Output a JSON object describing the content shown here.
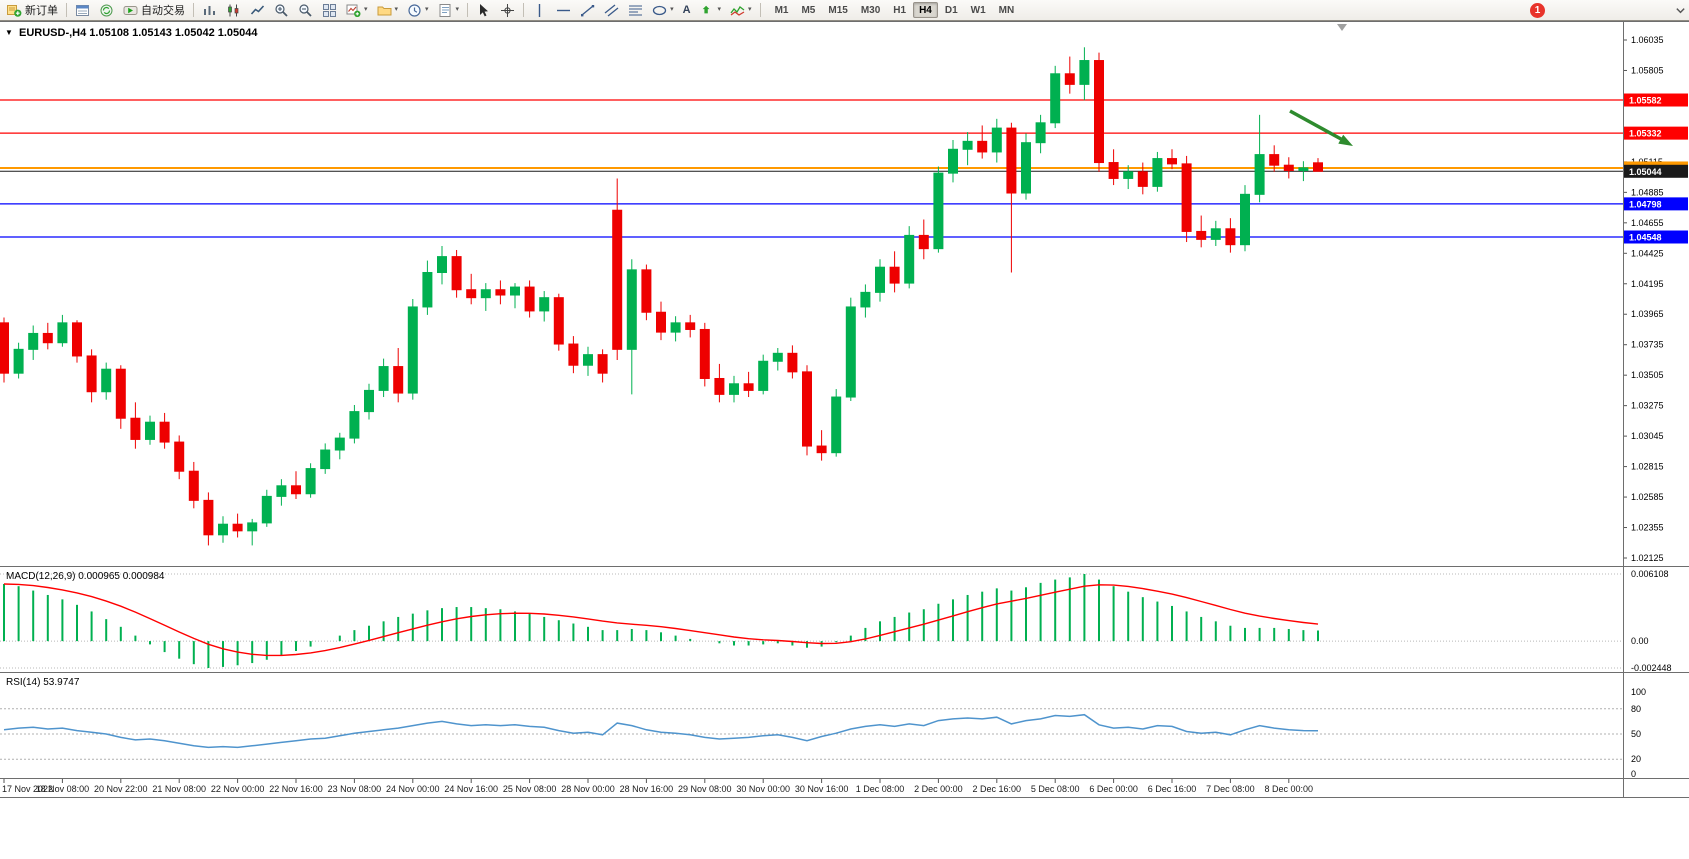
{
  "toolbar": {
    "new_order_label": "新订单",
    "autotrading_label": "自动交易",
    "timeframes": [
      "M1",
      "M5",
      "M15",
      "M30",
      "H1",
      "H4",
      "D1",
      "W1",
      "MN"
    ],
    "active_timeframe": "H4",
    "notification_count": "1",
    "text_tool_label": "A"
  },
  "chart": {
    "title": "EURUSD-,H4 1.05108 1.05143 1.05042 1.05044",
    "symbol": "EURUSD-",
    "period": "H4",
    "ohlc": {
      "open": "1.05108",
      "high": "1.05143",
      "low": "1.05042",
      "close": "1.05044"
    },
    "colors": {
      "up": "#00B050",
      "down": "#EE0000",
      "background": "#FFFFFF"
    },
    "price_axis": [
      "1.06035",
      "1.05805",
      "1.05575",
      "1.05345",
      "1.05115",
      "1.04885",
      "1.04655",
      "1.04425",
      "1.04195",
      "1.03965",
      "1.03735",
      "1.03505",
      "1.03275",
      "1.03045",
      "1.02815",
      "1.02585",
      "1.02355",
      "1.02125"
    ],
    "levels": [
      {
        "price": 1.05582,
        "label": "1.05582",
        "color": "#FF0000",
        "width": 1.3,
        "name": "resistance-line-1"
      },
      {
        "price": 1.05332,
        "label": "1.05332",
        "color": "#FF0000",
        "width": 1.3,
        "name": "resistance-line-2"
      },
      {
        "price": 1.05069,
        "label": "1.05069",
        "color": "#FF9900",
        "width": 2,
        "name": "pivot-line"
      },
      {
        "price": 1.05044,
        "label": "1.05044",
        "color": "#1A1A1A",
        "width": 1,
        "name": "current-bid-line"
      },
      {
        "price": 1.04798,
        "label": "1.04798",
        "color": "#0000FF",
        "width": 1.3,
        "name": "support-line-1"
      },
      {
        "price": 1.04548,
        "label": "1.04548",
        "color": "#0000FF",
        "width": 1.3,
        "name": "support-line-2"
      }
    ],
    "annotation_arrow": {
      "color": "#2E8B2E",
      "direction": "down-right"
    }
  },
  "macd": {
    "label": "MACD(12,26,9) 0.000965 0.000984",
    "axis": [
      "0.006108",
      "0.00",
      "-0.002448"
    ],
    "histogram_color": "#00B050",
    "signal_color": "#FF0000",
    "signal_period": 9
  },
  "rsi": {
    "label": "RSI(14) 53.9747",
    "axis": [
      "100",
      "80",
      "50",
      "20",
      "0"
    ],
    "levels": [
      80,
      50,
      20
    ],
    "line_color": "#4F94CD"
  },
  "chart_data": {
    "type": "candlestick",
    "symbol": "EURUSD-",
    "timeframe": "H4",
    "price_range": [
      1.02125,
      1.06035
    ],
    "x_labels": [
      "17 Nov 2022",
      "18 Nov 08:00",
      "20 Nov 22:00",
      "21 Nov 08:00",
      "22 Nov 00:00",
      "22 Nov 16:00",
      "23 Nov 08:00",
      "24 Nov 00:00",
      "24 Nov 16:00",
      "25 Nov 08:00",
      "28 Nov 00:00",
      "28 Nov 16:00",
      "29 Nov 08:00",
      "30 Nov 00:00",
      "30 Nov 16:00",
      "1 Dec 08:00",
      "2 Dec 00:00",
      "2 Dec 16:00",
      "5 Dec 08:00",
      "6 Dec 00:00",
      "6 Dec 16:00",
      "7 Dec 08:00",
      "8 Dec 00:00"
    ],
    "bars_per_label": 4,
    "candles_ohlc": [
      [
        1.039,
        1.0394,
        1.0345,
        1.0352
      ],
      [
        1.0352,
        1.0375,
        1.0348,
        1.037
      ],
      [
        1.037,
        1.0388,
        1.0362,
        1.0382
      ],
      [
        1.0382,
        1.039,
        1.037,
        1.0375
      ],
      [
        1.0375,
        1.0396,
        1.0372,
        1.039
      ],
      [
        1.039,
        1.0392,
        1.036,
        1.0365
      ],
      [
        1.0365,
        1.037,
        1.033,
        1.0338
      ],
      [
        1.0338,
        1.036,
        1.0332,
        1.0355
      ],
      [
        1.0355,
        1.0358,
        1.031,
        1.0318
      ],
      [
        1.0318,
        1.033,
        1.0295,
        1.0302
      ],
      [
        1.0302,
        1.032,
        1.0298,
        1.0315
      ],
      [
        1.0315,
        1.0322,
        1.0295,
        1.03
      ],
      [
        1.03,
        1.0305,
        1.0272,
        1.0278
      ],
      [
        1.0278,
        1.0285,
        1.025,
        1.0256
      ],
      [
        1.0256,
        1.0262,
        1.0222,
        1.023
      ],
      [
        1.023,
        1.0244,
        1.0224,
        1.0238
      ],
      [
        1.0238,
        1.0246,
        1.0228,
        1.0233
      ],
      [
        1.0233,
        1.0242,
        1.0222,
        1.0239
      ],
      [
        1.0239,
        1.0264,
        1.0236,
        1.0259
      ],
      [
        1.0259,
        1.0272,
        1.0252,
        1.0267
      ],
      [
        1.0267,
        1.0278,
        1.0257,
        1.0261
      ],
      [
        1.0261,
        1.0284,
        1.0258,
        1.028
      ],
      [
        1.028,
        1.0299,
        1.0276,
        1.0294
      ],
      [
        1.0294,
        1.0307,
        1.0287,
        1.0303
      ],
      [
        1.0303,
        1.0328,
        1.0299,
        1.0323
      ],
      [
        1.0323,
        1.0344,
        1.0317,
        1.0339
      ],
      [
        1.0339,
        1.0363,
        1.0334,
        1.0357
      ],
      [
        1.0357,
        1.0371,
        1.033,
        1.0337
      ],
      [
        1.0337,
        1.0408,
        1.0332,
        1.0402
      ],
      [
        1.0402,
        1.0437,
        1.0396,
        1.0428
      ],
      [
        1.0428,
        1.0448,
        1.0419,
        1.044
      ],
      [
        1.044,
        1.0445,
        1.0409,
        1.0415
      ],
      [
        1.0415,
        1.0427,
        1.0404,
        1.0409
      ],
      [
        1.0409,
        1.042,
        1.0399,
        1.0415
      ],
      [
        1.0415,
        1.0422,
        1.0404,
        1.0411
      ],
      [
        1.0411,
        1.042,
        1.0401,
        1.0417
      ],
      [
        1.0417,
        1.0422,
        1.0394,
        1.0399
      ],
      [
        1.0399,
        1.0414,
        1.0391,
        1.0409
      ],
      [
        1.0409,
        1.0412,
        1.0369,
        1.0374
      ],
      [
        1.0374,
        1.038,
        1.0352,
        1.0358
      ],
      [
        1.0358,
        1.0372,
        1.035,
        1.0366
      ],
      [
        1.0366,
        1.037,
        1.0345,
        1.0352
      ],
      [
        1.0475,
        1.0499,
        1.0362,
        1.037
      ],
      [
        1.037,
        1.0438,
        1.0336,
        1.043
      ],
      [
        1.043,
        1.0434,
        1.0392,
        1.0398
      ],
      [
        1.0398,
        1.0406,
        1.0377,
        1.0383
      ],
      [
        1.0383,
        1.0395,
        1.0376,
        1.039
      ],
      [
        1.039,
        1.0396,
        1.0379,
        1.0385
      ],
      [
        1.0385,
        1.039,
        1.0342,
        1.0348
      ],
      [
        1.0348,
        1.0359,
        1.033,
        1.0336
      ],
      [
        1.0336,
        1.035,
        1.033,
        1.0344
      ],
      [
        1.0344,
        1.0353,
        1.0334,
        1.0339
      ],
      [
        1.0339,
        1.0366,
        1.0336,
        1.0361
      ],
      [
        1.0361,
        1.0371,
        1.0354,
        1.0367
      ],
      [
        1.0367,
        1.0373,
        1.0348,
        1.0353
      ],
      [
        1.0353,
        1.0358,
        1.029,
        1.0297
      ],
      [
        1.0297,
        1.0309,
        1.0286,
        1.0292
      ],
      [
        1.0292,
        1.034,
        1.0289,
        1.0334
      ],
      [
        1.0334,
        1.0409,
        1.0331,
        1.0402
      ],
      [
        1.0402,
        1.0419,
        1.0394,
        1.0413
      ],
      [
        1.0413,
        1.0438,
        1.0406,
        1.0432
      ],
      [
        1.0432,
        1.0444,
        1.0413,
        1.042
      ],
      [
        1.042,
        1.0463,
        1.0416,
        1.0456
      ],
      [
        1.0456,
        1.0468,
        1.0438,
        1.0446
      ],
      [
        1.0446,
        1.0508,
        1.0443,
        1.0503
      ],
      [
        1.0503,
        1.0528,
        1.0496,
        1.0521
      ],
      [
        1.0521,
        1.0534,
        1.0509,
        1.0527
      ],
      [
        1.0527,
        1.0539,
        1.0514,
        1.0519
      ],
      [
        1.0519,
        1.0544,
        1.0511,
        1.0537
      ],
      [
        1.0537,
        1.0541,
        1.0428,
        1.0488
      ],
      [
        1.0488,
        1.0533,
        1.0483,
        1.0526
      ],
      [
        1.0526,
        1.0547,
        1.0518,
        1.0541
      ],
      [
        1.0541,
        1.0584,
        1.0537,
        1.0578
      ],
      [
        1.0578,
        1.0591,
        1.0563,
        1.057
      ],
      [
        1.057,
        1.0598,
        1.0558,
        1.0588
      ],
      [
        1.0588,
        1.0594,
        1.0504,
        1.0511
      ],
      [
        1.0511,
        1.0521,
        1.0494,
        1.0499
      ],
      [
        1.0499,
        1.0509,
        1.0491,
        1.0504
      ],
      [
        1.0504,
        1.0511,
        1.0487,
        1.0493
      ],
      [
        1.0493,
        1.0519,
        1.0489,
        1.0514
      ],
      [
        1.0514,
        1.0521,
        1.0506,
        1.051
      ],
      [
        1.051,
        1.0516,
        1.0451,
        1.0459
      ],
      [
        1.0459,
        1.0471,
        1.0447,
        1.0453
      ],
      [
        1.0453,
        1.0467,
        1.0448,
        1.0461
      ],
      [
        1.0461,
        1.0469,
        1.0443,
        1.0449
      ],
      [
        1.0449,
        1.0494,
        1.0444,
        1.0487
      ],
      [
        1.0487,
        1.0547,
        1.0481,
        1.0517
      ],
      [
        1.0517,
        1.0524,
        1.0504,
        1.0509
      ],
      [
        1.0509,
        1.0515,
        1.0499,
        1.0505
      ],
      [
        1.0505,
        1.0512,
        1.0497,
        1.0507
      ],
      [
        1.05108,
        1.05143,
        1.05042,
        1.05044
      ]
    ],
    "indicators": {
      "macd": {
        "params": "12,26,9",
        "current": 0.000965,
        "current_signal": 0.000984,
        "histogram": [
          0.0052,
          0.005,
          0.0046,
          0.0042,
          0.0038,
          0.0033,
          0.0027,
          0.002,
          0.0013,
          0.0005,
          -0.0003,
          -0.001,
          -0.0016,
          -0.0021,
          -0.00245,
          -0.00235,
          -0.0022,
          -0.002,
          -0.0017,
          -0.0013,
          -0.0009,
          -0.0005,
          0.0,
          0.0005,
          0.001,
          0.0014,
          0.0018,
          0.0022,
          0.0025,
          0.0028,
          0.003,
          0.0031,
          0.0031,
          0.003,
          0.0029,
          0.0027,
          0.0025,
          0.0022,
          0.0019,
          0.0016,
          0.0013,
          0.001,
          0.001,
          0.0011,
          0.001,
          0.0008,
          0.0005,
          0.0002,
          0.0,
          -0.0002,
          -0.0004,
          -0.0004,
          -0.0003,
          -0.0002,
          -0.0004,
          -0.0006,
          -0.0005,
          -0.0001,
          0.0005,
          0.0012,
          0.0018,
          0.0022,
          0.0026,
          0.0029,
          0.0034,
          0.0038,
          0.0042,
          0.0045,
          0.0048,
          0.0046,
          0.0049,
          0.0053,
          0.0056,
          0.0058,
          0.006108,
          0.0056,
          0.005,
          0.0045,
          0.004,
          0.0036,
          0.0032,
          0.0027,
          0.0022,
          0.0018,
          0.0014,
          0.0012,
          0.0012,
          0.0012,
          0.0011,
          0.001,
          0.000965
        ]
      },
      "rsi": {
        "params": "14",
        "current": 53.9747,
        "values": [
          55,
          57,
          58,
          56,
          57,
          54,
          52,
          50,
          46,
          43,
          44,
          42,
          39,
          36,
          34,
          35,
          34,
          36,
          38,
          40,
          42,
          44,
          45,
          48,
          51,
          53,
          55,
          57,
          60,
          63,
          65,
          62,
          60,
          61,
          60,
          61,
          59,
          58,
          54,
          51,
          52,
          49,
          63,
          60,
          55,
          52,
          51,
          49,
          46,
          44,
          45,
          46,
          48,
          49,
          46,
          42,
          47,
          51,
          56,
          59,
          61,
          59,
          62,
          60,
          66,
          68,
          69,
          68,
          70,
          62,
          66,
          68,
          72,
          71,
          73,
          61,
          57,
          58,
          56,
          60,
          59,
          53,
          51,
          52,
          49,
          55,
          60,
          57,
          55,
          54,
          53.97
        ]
      }
    }
  }
}
